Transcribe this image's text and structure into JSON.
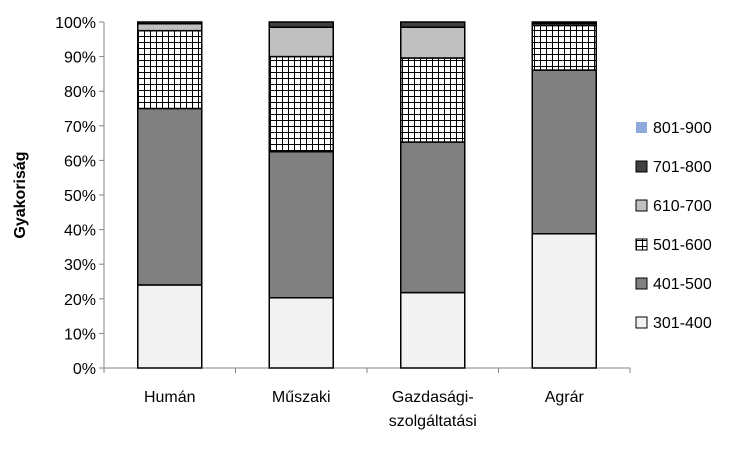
{
  "chart_data": {
    "type": "bar",
    "stacked": true,
    "percent_stacked": true,
    "ylabel": "Gyakoriság",
    "xlabel": "",
    "ylim": [
      0,
      100
    ],
    "y_ticks": [
      "0%",
      "10%",
      "20%",
      "30%",
      "40%",
      "50%",
      "60%",
      "70%",
      "80%",
      "90%",
      "100%"
    ],
    "categories": [
      [
        "Humán"
      ],
      [
        "Műszaki"
      ],
      [
        "Gazdasági-",
        "szolgáltatási"
      ],
      [
        "Agrár"
      ]
    ],
    "series": [
      {
        "name": "301-400",
        "values": [
          24,
          20.3,
          21.8,
          38.8
        ],
        "color": "#f2f2f2",
        "pattern": "none"
      },
      {
        "name": "401-500",
        "values": [
          51,
          42.2,
          43.5,
          47.3
        ],
        "color": "#808080",
        "pattern": "none"
      },
      {
        "name": "501-600",
        "values": [
          22.5,
          27.5,
          24.3,
          12.9
        ],
        "color": "#ffffff",
        "pattern": "grid"
      },
      {
        "name": "610-700",
        "values": [
          2,
          8.5,
          8.9,
          0.5
        ],
        "color": "#c0c0c0",
        "pattern": "none"
      },
      {
        "name": "701-800",
        "values": [
          0.5,
          1.5,
          1.5,
          0.3
        ],
        "color": "#404040",
        "pattern": "none"
      },
      {
        "name": "801-900",
        "values": [
          0,
          0,
          0,
          0.2
        ],
        "color": "#8eaadb",
        "pattern": "none"
      }
    ],
    "legend_position": "right",
    "legend_order": [
      "801-900",
      "701-800",
      "610-700",
      "501-600",
      "401-500",
      "301-400"
    ],
    "grid": false
  }
}
